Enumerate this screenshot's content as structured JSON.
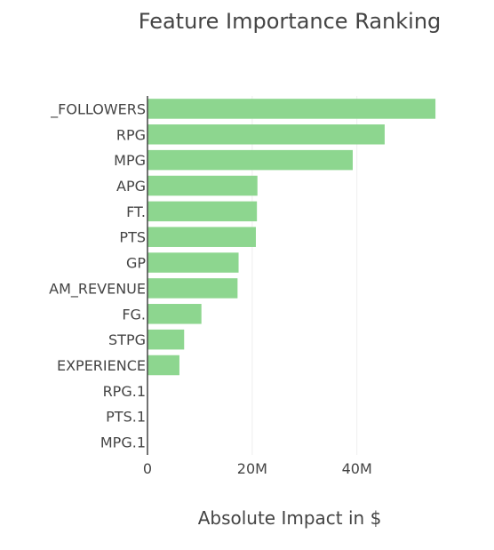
{
  "chart_data": {
    "type": "bar",
    "orientation": "horizontal",
    "title": "Feature Importance Ranking",
    "xlabel": "Absolute Impact in $",
    "ylabel": "",
    "categories": [
      "_FOLLOWERS",
      "RPG",
      "MPG",
      "APG",
      "FT.",
      "PTS",
      "GP",
      "AM_REVENUE",
      "FG.",
      "STPG",
      "EXPERIENCE",
      "RPG.1",
      "PTS.1",
      "MPG.1"
    ],
    "values": [
      55000000,
      45300000,
      39200000,
      21000000,
      20900000,
      20700000,
      17400000,
      17200000,
      10300000,
      7000000,
      6100000,
      0,
      0,
      0
    ],
    "xlim": [
      0,
      56000000
    ],
    "xticks": [
      0,
      20000000,
      40000000
    ],
    "xtick_labels": [
      "0",
      "20M",
      "40M"
    ],
    "grid": true,
    "bar_color": "#8dd68f",
    "axis_color": "#444444",
    "grid_color": "#eeeeee"
  }
}
